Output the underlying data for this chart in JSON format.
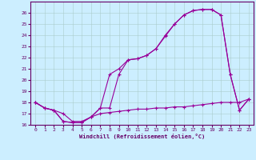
{
  "xlabel": "Windchill (Refroidissement éolien,°C)",
  "xlim": [
    -0.5,
    23.5
  ],
  "ylim": [
    16,
    27
  ],
  "yticks": [
    16,
    17,
    18,
    19,
    20,
    21,
    22,
    23,
    24,
    25,
    26
  ],
  "xticks": [
    0,
    1,
    2,
    3,
    4,
    5,
    6,
    7,
    8,
    9,
    10,
    11,
    12,
    13,
    14,
    15,
    16,
    17,
    18,
    19,
    20,
    21,
    22,
    23
  ],
  "bg_color": "#cceeff",
  "grid_color": "#aacccc",
  "line_color": "#990099",
  "line1_x": [
    0,
    1,
    2,
    3,
    4,
    5,
    6,
    7,
    8,
    9,
    10,
    11,
    12,
    13,
    14,
    15,
    16,
    17,
    18,
    19,
    20,
    21,
    22,
    23
  ],
  "line1_y": [
    18.0,
    17.5,
    17.3,
    16.3,
    16.2,
    16.2,
    16.7,
    17.5,
    20.5,
    21.0,
    21.8,
    21.9,
    22.2,
    22.8,
    23.9,
    25.0,
    25.8,
    26.2,
    26.3,
    26.3,
    25.8,
    20.5,
    17.3,
    18.3
  ],
  "line2_x": [
    0,
    1,
    2,
    3,
    4,
    5,
    6,
    7,
    8,
    9,
    10,
    11,
    12,
    13,
    14,
    15,
    16,
    17,
    18,
    19,
    20,
    21,
    22,
    23
  ],
  "line2_y": [
    18.0,
    17.5,
    17.3,
    16.3,
    16.2,
    16.2,
    16.7,
    17.5,
    17.5,
    20.5,
    21.8,
    21.9,
    22.2,
    22.8,
    24.0,
    25.0,
    25.8,
    26.2,
    26.3,
    26.3,
    25.8,
    20.5,
    17.3,
    18.3
  ],
  "line3_x": [
    0,
    1,
    2,
    3,
    4,
    5,
    6,
    7,
    8,
    9,
    10,
    11,
    12,
    13,
    14,
    15,
    16,
    17,
    18,
    19,
    20,
    21,
    22,
    23
  ],
  "line3_y": [
    18.0,
    17.5,
    17.3,
    17.0,
    16.3,
    16.3,
    16.7,
    17.0,
    17.1,
    17.2,
    17.3,
    17.4,
    17.4,
    17.5,
    17.5,
    17.6,
    17.6,
    17.7,
    17.8,
    17.9,
    18.0,
    18.0,
    18.0,
    18.3
  ]
}
